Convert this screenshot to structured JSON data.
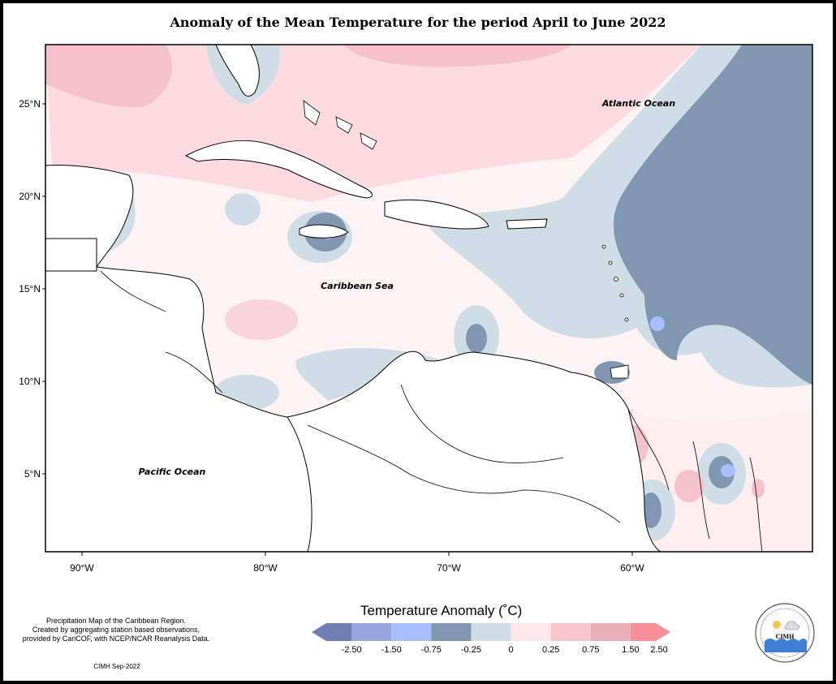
{
  "title": "Anomaly of the Mean Temperature for the period April to June 2022",
  "map": {
    "lat_ticks": [
      {
        "value": 25,
        "label": "25°N"
      },
      {
        "value": 20,
        "label": "20°N"
      },
      {
        "value": 15,
        "label": "15°N"
      },
      {
        "value": 10,
        "label": "10°N"
      },
      {
        "value": 5,
        "label": "5°N"
      }
    ],
    "lon_ticks": [
      {
        "value": -90,
        "label": "90°W"
      },
      {
        "value": -80,
        "label": "80°W"
      },
      {
        "value": -70,
        "label": "70°W"
      },
      {
        "value": -60,
        "label": "60°W"
      }
    ],
    "labels": {
      "atlantic": "Atlantic Ocean",
      "caribbean": "Caribbean Sea",
      "pacific": "Pacific Ocean"
    }
  },
  "legend": {
    "title": "Temperature Anomaly (˚C)",
    "colors": [
      "#6f7fb6",
      "#93a6df",
      "#a8bfff",
      "#8097b1",
      "#cfdee6",
      "#ffe6ea",
      "#f7c3cc",
      "#eaaeb6",
      "#f78f97"
    ],
    "ticks": [
      "-2.50",
      "-1.50",
      "-0.75",
      "-0.25",
      "0",
      "0.25",
      "0.75",
      "1.50",
      "2.50"
    ]
  },
  "notes": {
    "source": [
      "Precipitation Map of the Caribbean Region.",
      "Created by aggregating station based observations,",
      "provided by CariCOF, with NCEP/NCAR Reanalysis Data."
    ],
    "credit": "CIMH Sep-2022"
  },
  "logo": {
    "text": "CIMH"
  }
}
